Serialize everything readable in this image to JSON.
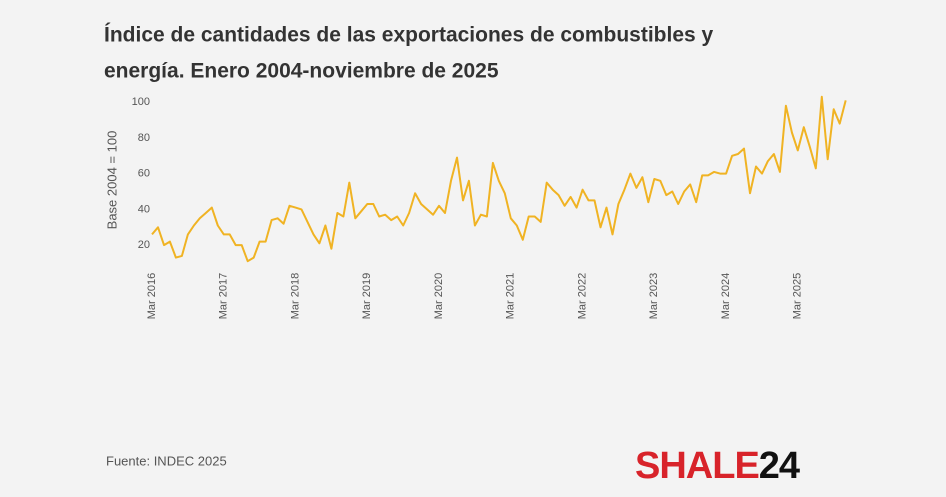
{
  "chart_data": {
    "type": "line",
    "title_lines": [
      "Índice de cantidades de las exportaciones de combustibles y",
      "energía. Enero 2004-noviembre de 2025"
    ],
    "y_label": "Base 2004 = 100",
    "source": "Fuente: INDEC 2025",
    "logo": [
      "SHALE",
      "24"
    ],
    "categories": [
      "Mar 2016",
      null,
      null,
      null,
      null,
      null,
      null,
      null,
      null,
      null,
      null,
      null,
      "Mar 2017",
      null,
      null,
      null,
      null,
      null,
      null,
      null,
      null,
      null,
      null,
      null,
      "Mar 2018",
      null,
      null,
      null,
      null,
      null,
      null,
      null,
      null,
      null,
      null,
      null,
      "Mar 2019",
      null,
      null,
      null,
      null,
      null,
      null,
      null,
      null,
      null,
      null,
      null,
      "Mar 2020",
      null,
      null,
      null,
      null,
      null,
      null,
      null,
      null,
      null,
      null,
      null,
      "Mar 2021",
      null,
      null,
      null,
      null,
      null,
      null,
      null,
      null,
      null,
      null,
      null,
      "Mar 2022",
      null,
      null,
      null,
      null,
      null,
      null,
      null,
      null,
      null,
      null,
      null,
      "Mar 2023",
      null,
      null,
      null,
      null,
      null,
      null,
      null,
      null,
      null,
      null,
      null,
      "Mar 2024",
      null,
      null,
      null,
      null,
      null,
      null,
      null,
      null,
      null,
      null,
      null,
      "Mar 2025",
      null,
      null,
      null,
      null,
      null,
      null,
      null,
      null
    ],
    "values": [
      26,
      30,
      20,
      22,
      13,
      14,
      26,
      31,
      35,
      38,
      41,
      31,
      26,
      26,
      20,
      20,
      11,
      13,
      22,
      22,
      34,
      35,
      32,
      42,
      41,
      40,
      33,
      26,
      21,
      31,
      18,
      38,
      36,
      55,
      35,
      39,
      43,
      43,
      36,
      37,
      34,
      36,
      31,
      38,
      49,
      43,
      40,
      37,
      42,
      38,
      56,
      69,
      45,
      56,
      31,
      37,
      36,
      66,
      56,
      49,
      35,
      31,
      23,
      36,
      36,
      33,
      55,
      51,
      48,
      42,
      47,
      41,
      51,
      45,
      45,
      30,
      41,
      26,
      43,
      51,
      60,
      52,
      58,
      44,
      57,
      56,
      48,
      50,
      43,
      50,
      54,
      44,
      59,
      59,
      61,
      60,
      60,
      70,
      71,
      74,
      49,
      64,
      60,
      67,
      71,
      61,
      98,
      83,
      73,
      86,
      75,
      63,
      103,
      68,
      96,
      88,
      101
    ],
    "color": "#f0b323",
    "ylim": [
      10,
      104
    ],
    "yticks": [
      20,
      40,
      60,
      80,
      100
    ],
    "grid": false
  }
}
